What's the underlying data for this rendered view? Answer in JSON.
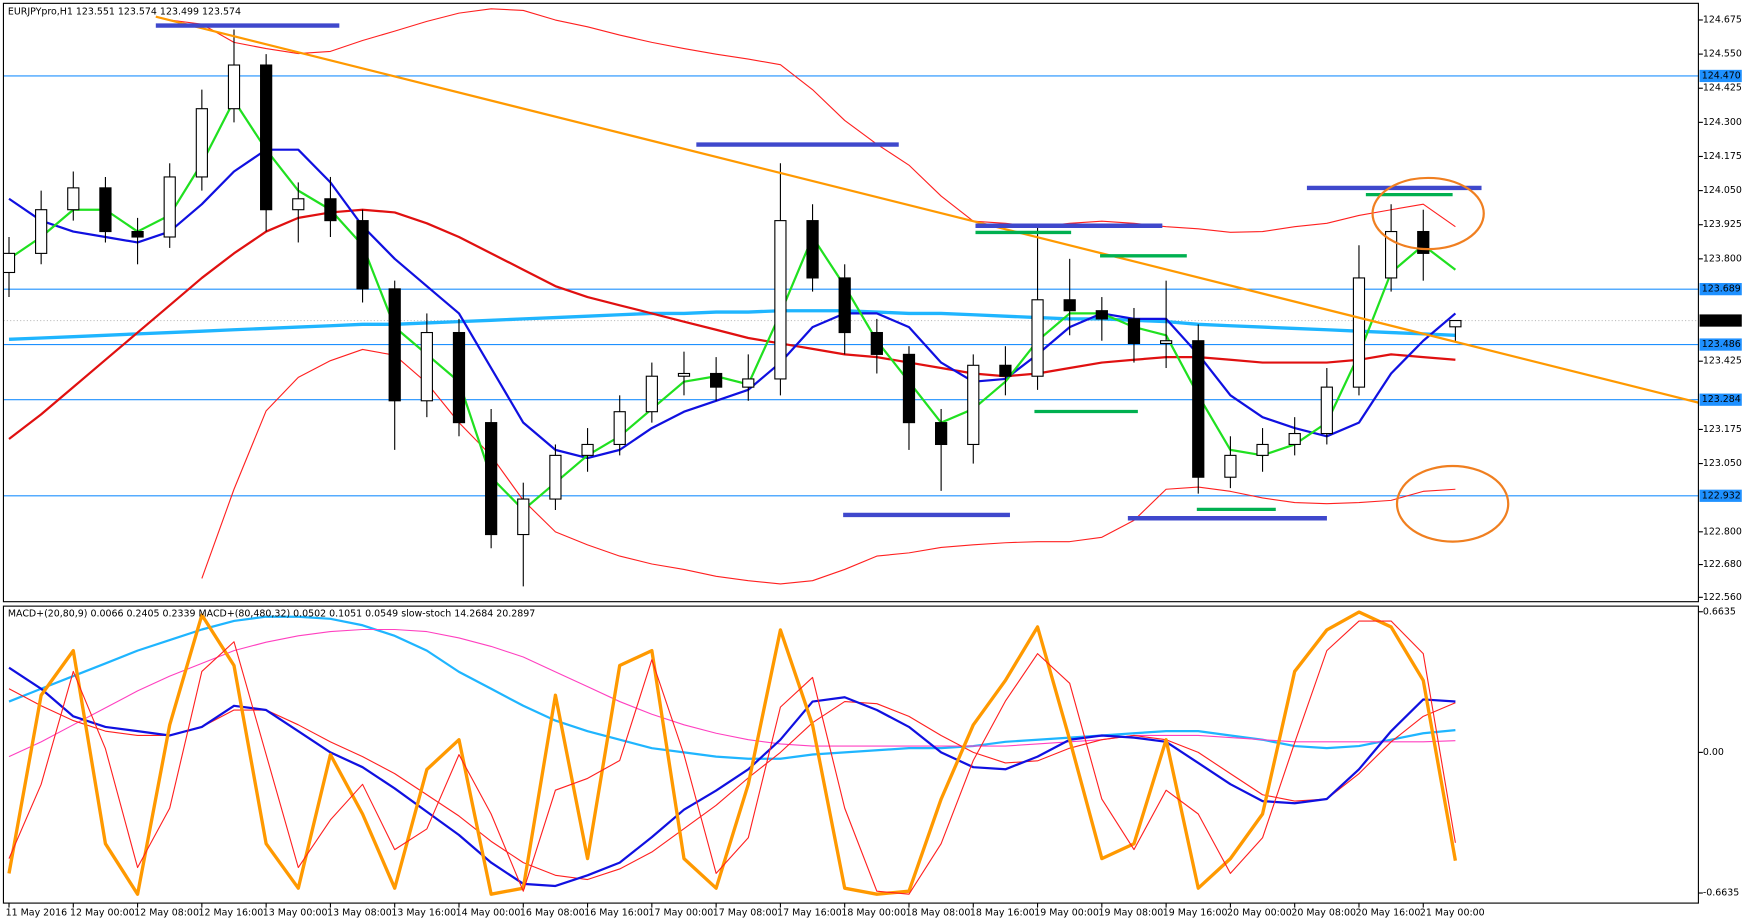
{
  "chart_data": [
    {
      "type": "candlestick",
      "title": "EURJPYpro,H1  123.551 123.574 123.499 123.574",
      "categories": [
        "11 May 2016",
        null,
        "12 May 00:00",
        null,
        "12 May 08:00",
        null,
        "12 May 16:00",
        null,
        "13 May 00:00",
        null,
        "13 May 08:00",
        null,
        "13 May 16:00",
        null,
        "14 May 00:00",
        null,
        "16 May 08:00",
        null,
        "16 May 16:00",
        null,
        "17 May 00:00",
        null,
        "17 May 08:00",
        null,
        "17 May 16:00",
        null,
        "18 May 00:00",
        null,
        "18 May 08:00",
        null,
        "18 May 16:00",
        null,
        "19 May 00:00",
        null,
        "19 May 08:00",
        null,
        "19 May 16:00",
        null,
        "20 May 00:00",
        null,
        "20 May 08:00",
        null,
        "20 May 16:00",
        null,
        "21 May 00:00",
        null
      ],
      "open": [
        123.75,
        123.82,
        123.98,
        124.06,
        123.9,
        123.88,
        124.1,
        124.35,
        124.51,
        123.98,
        124.02,
        123.94,
        123.69,
        123.28,
        123.53,
        123.2,
        122.79,
        122.92,
        123.08,
        123.12,
        123.24,
        123.37,
        123.38,
        123.33,
        123.36,
        123.94,
        123.73,
        123.53,
        123.45,
        123.2,
        123.12,
        123.41,
        123.37,
        123.65,
        123.61,
        123.58,
        123.49,
        123.5,
        123.0,
        123.08,
        123.12,
        123.16,
        123.33,
        123.73,
        123.9,
        123.551
      ],
      "high": [
        123.88,
        124.05,
        124.12,
        124.1,
        123.95,
        124.15,
        124.42,
        124.64,
        124.55,
        124.08,
        124.1,
        123.98,
        123.72,
        123.6,
        123.58,
        123.25,
        122.98,
        123.12,
        123.18,
        123.3,
        123.42,
        123.46,
        123.44,
        123.45,
        124.15,
        124.0,
        123.78,
        123.58,
        123.48,
        123.25,
        123.45,
        123.48,
        123.92,
        123.8,
        123.66,
        123.62,
        123.72,
        123.56,
        123.15,
        123.18,
        123.22,
        123.4,
        123.85,
        124.0,
        123.98,
        123.574
      ],
      "low": [
        123.66,
        123.78,
        123.94,
        123.86,
        123.78,
        123.84,
        124.05,
        124.3,
        123.9,
        123.86,
        123.88,
        123.64,
        123.1,
        123.22,
        123.15,
        122.74,
        122.6,
        122.88,
        123.02,
        123.08,
        123.2,
        123.3,
        123.28,
        123.28,
        123.3,
        123.68,
        123.45,
        123.38,
        123.1,
        122.95,
        123.05,
        123.3,
        123.32,
        123.52,
        123.5,
        123.42,
        123.4,
        122.94,
        122.96,
        123.02,
        123.08,
        123.12,
        123.3,
        123.68,
        123.72,
        123.499
      ],
      "close": [
        123.82,
        123.98,
        124.06,
        123.9,
        123.88,
        124.1,
        124.35,
        124.51,
        123.98,
        124.02,
        123.94,
        123.69,
        123.28,
        123.53,
        123.2,
        122.79,
        122.92,
        123.08,
        123.12,
        123.24,
        123.37,
        123.38,
        123.33,
        123.36,
        123.94,
        123.73,
        123.53,
        123.45,
        123.2,
        123.12,
        123.41,
        123.37,
        123.65,
        123.61,
        123.58,
        123.49,
        123.5,
        123.0,
        123.08,
        123.12,
        123.16,
        123.33,
        123.73,
        123.9,
        123.82,
        123.574
      ],
      "up_color": "#ffffff",
      "down_color": "#000000",
      "wick_color": "#000000",
      "series": [
        {
          "color": "#ff2020",
          "width": 1,
          "values": [
            null,
            null,
            null,
            null,
            null,
            124.675,
            124.66,
            124.593,
            124.57,
            124.552,
            124.56,
            124.6,
            124.634,
            124.67,
            124.7,
            124.716,
            124.71,
            124.675,
            124.65,
            124.62,
            124.593,
            124.57,
            124.55,
            124.532,
            124.511,
            124.42,
            124.307,
            124.22,
            124.143,
            124.03,
            123.938,
            123.93,
            123.918,
            123.93,
            123.938,
            123.93,
            123.918,
            123.91,
            123.897,
            123.9,
            123.918,
            123.93,
            123.959,
            123.98,
            124.0,
            123.918
          ]
        },
        {
          "color": "#ff2020",
          "width": 1,
          "values": [
            null,
            null,
            null,
            null,
            null,
            null,
            122.629,
            122.956,
            123.243,
            123.366,
            123.427,
            123.468,
            123.447,
            123.345,
            123.2,
            123.079,
            122.915,
            122.8,
            122.752,
            122.711,
            122.682,
            122.662,
            122.637,
            122.621,
            122.609,
            122.621,
            122.662,
            122.711,
            122.723,
            122.743,
            122.752,
            122.76,
            122.764,
            122.764,
            122.78,
            122.842,
            122.956,
            122.964,
            122.948,
            122.924,
            122.907,
            122.903,
            122.907,
            122.915,
            122.948,
            122.956
          ]
        },
        {
          "color": "#1fb5ff",
          "width": 3,
          "values": [
            123.505,
            123.51,
            123.515,
            123.52,
            123.525,
            123.53,
            123.535,
            123.54,
            123.545,
            123.55,
            123.555,
            123.56,
            123.56,
            123.565,
            123.57,
            123.575,
            123.58,
            123.585,
            123.59,
            123.595,
            123.6,
            123.6,
            123.605,
            123.605,
            123.61,
            123.61,
            123.61,
            123.605,
            123.6,
            123.6,
            123.595,
            123.59,
            123.585,
            123.58,
            123.58,
            123.575,
            123.57,
            123.56,
            123.555,
            123.55,
            123.545,
            123.54,
            123.535,
            123.53,
            123.525,
            123.52
          ]
        },
        {
          "color": "#e01010",
          "width": 2,
          "values": [
            123.14,
            123.23,
            123.33,
            123.43,
            123.53,
            123.63,
            123.73,
            123.82,
            123.9,
            123.95,
            123.97,
            123.98,
            123.97,
            123.93,
            123.88,
            123.82,
            123.76,
            123.7,
            123.66,
            123.63,
            123.6,
            123.57,
            123.54,
            123.51,
            123.49,
            123.47,
            123.45,
            123.44,
            123.42,
            123.4,
            123.38,
            123.37,
            123.38,
            123.4,
            123.42,
            123.43,
            123.44,
            123.44,
            123.43,
            123.42,
            123.42,
            123.42,
            123.43,
            123.45,
            123.44,
            123.43
          ]
        },
        {
          "color": "#1010e0",
          "width": 2,
          "values": [
            124.02,
            123.94,
            123.9,
            123.88,
            123.86,
            123.9,
            124.0,
            124.12,
            124.2,
            124.2,
            124.08,
            123.92,
            123.8,
            123.7,
            123.6,
            123.4,
            123.2,
            123.1,
            123.07,
            123.1,
            123.18,
            123.24,
            123.28,
            123.32,
            123.42,
            123.55,
            123.6,
            123.6,
            123.55,
            123.42,
            123.35,
            123.36,
            123.45,
            123.55,
            123.6,
            123.58,
            123.58,
            123.45,
            123.3,
            123.22,
            123.18,
            123.15,
            123.2,
            123.38,
            123.5,
            123.6
          ]
        },
        {
          "color": "#20e020",
          "width": 2,
          "values": [
            123.8,
            123.88,
            123.98,
            123.98,
            123.9,
            123.96,
            124.15,
            124.38,
            124.2,
            124.05,
            123.98,
            123.85,
            123.55,
            123.45,
            123.35,
            123.0,
            122.88,
            122.98,
            123.08,
            123.15,
            123.25,
            123.35,
            123.37,
            123.34,
            123.6,
            123.88,
            123.7,
            123.5,
            123.35,
            123.2,
            123.25,
            123.35,
            123.5,
            123.6,
            123.6,
            123.55,
            123.52,
            123.3,
            123.1,
            123.08,
            123.12,
            123.2,
            123.45,
            123.75,
            123.85,
            123.76
          ]
        }
      ],
      "levels": [
        {
          "value": 124.47,
          "label": "124.470"
        },
        123.689,
        123.486,
        123.284,
        122.932
      ],
      "level_color": "#1e90ff",
      "last_price": 123.574,
      "ylim": [
        122.544,
        124.736
      ],
      "yticks": [
        124.675,
        {
          "value": 124.55,
          "label": "124.550"
        },
        124.425,
        {
          "value": 124.3,
          "label": "124.300"
        },
        124.175,
        {
          "value": 124.05,
          "label": "124.050"
        },
        123.925,
        {
          "value": 123.8,
          "label": "123.800"
        },
        123.425,
        123.175,
        {
          "value": 123.05,
          "label": "123.050"
        },
        {
          "value": 122.8,
          "label": "122.800"
        },
        {
          "value": 122.68,
          "label": "122.680"
        },
        {
          "value": 122.56,
          "label": "122.560"
        }
      ]
    },
    {
      "type": "line",
      "title": "MACD+(20,80,9) 0.0066 0.2405 0.2339  MACD+(80,480,32) 0.0502 0.1051 0.0549  slow-stoch 14.2684 20.2897",
      "series": [
        {
          "color": "#1fb5ff",
          "width": 2,
          "values": [
            0.24,
            0.3,
            0.36,
            0.42,
            0.48,
            0.53,
            0.58,
            0.62,
            0.64,
            0.64,
            0.63,
            0.6,
            0.55,
            0.48,
            0.38,
            0.3,
            0.22,
            0.15,
            0.1,
            0.06,
            0.02,
            0.0,
            -0.02,
            -0.03,
            -0.03,
            -0.01,
            0.0,
            0.01,
            0.02,
            0.02,
            0.03,
            0.05,
            0.06,
            0.07,
            0.08,
            0.09,
            0.1,
            0.1,
            0.08,
            0.06,
            0.03,
            0.02,
            0.03,
            0.06,
            0.09,
            0.1051
          ]
        },
        {
          "color": "#ff40c0",
          "width": 1,
          "values": [
            -0.02,
            0.05,
            0.13,
            0.21,
            0.29,
            0.36,
            0.42,
            0.48,
            0.52,
            0.55,
            0.57,
            0.58,
            0.58,
            0.57,
            0.54,
            0.5,
            0.45,
            0.38,
            0.31,
            0.24,
            0.18,
            0.13,
            0.09,
            0.06,
            0.04,
            0.03,
            0.03,
            0.03,
            0.03,
            0.03,
            0.03,
            0.03,
            0.04,
            0.05,
            0.06,
            0.08,
            0.08,
            0.08,
            0.07,
            0.06,
            0.05,
            0.05,
            0.05,
            0.05,
            0.05,
            0.0549
          ]
        },
        {
          "color": "#ff2020",
          "width": 1,
          "values": [
            0.3,
            0.22,
            0.15,
            0.1,
            0.08,
            0.08,
            0.12,
            0.2,
            0.2,
            0.13,
            0.05,
            -0.02,
            -0.1,
            -0.2,
            -0.3,
            -0.42,
            -0.52,
            -0.58,
            -0.6,
            -0.55,
            -0.47,
            -0.36,
            -0.25,
            -0.12,
            0.0,
            0.14,
            0.24,
            0.23,
            0.17,
            0.08,
            0.0,
            -0.05,
            -0.04,
            0.02,
            0.06,
            0.08,
            0.06,
            0.0,
            -0.1,
            -0.2,
            -0.23,
            -0.22,
            -0.1,
            0.05,
            0.17,
            0.2339
          ]
        },
        {
          "color": "#1010e0",
          "width": 2,
          "values": [
            0.4,
            0.3,
            0.17,
            0.12,
            0.1,
            0.08,
            0.12,
            0.22,
            0.2,
            0.1,
            0.0,
            -0.07,
            -0.17,
            -0.28,
            -0.39,
            -0.52,
            -0.62,
            -0.63,
            -0.58,
            -0.52,
            -0.4,
            -0.27,
            -0.18,
            -0.08,
            0.06,
            0.24,
            0.26,
            0.2,
            0.12,
            0.0,
            -0.07,
            -0.08,
            -0.02,
            0.06,
            0.08,
            0.07,
            0.05,
            -0.05,
            -0.15,
            -0.23,
            -0.24,
            -0.22,
            -0.08,
            0.1,
            0.25,
            0.2405
          ]
        },
        {
          "color": "#ff9900",
          "width": 3,
          "axis": "y2",
          "values": [
            10,
            70,
            85,
            20,
            3,
            60,
            97,
            80,
            20,
            5,
            50,
            30,
            5,
            45,
            55,
            3,
            5,
            70,
            15,
            80,
            85,
            15,
            5,
            40,
            92,
            60,
            5,
            3,
            4,
            35,
            60,
            75,
            93,
            55,
            15,
            20,
            55,
            5,
            15,
            30,
            78,
            92,
            98,
            93,
            75,
            14.2684
          ]
        },
        {
          "color": "#ff2020",
          "width": 1,
          "axis": "y2",
          "values": [
            15,
            40,
            78,
            52,
            12,
            32,
            78,
            88,
            50,
            12,
            28,
            40,
            18,
            25,
            50,
            30,
            4,
            38,
            42,
            48,
            82,
            50,
            10,
            22,
            66,
            76,
            32,
            4,
            3,
            20,
            48,
            68,
            84,
            74,
            35,
            18,
            38,
            30,
            10,
            22,
            54,
            85,
            95,
            95,
            84,
            20.2897
          ]
        }
      ],
      "ylim": [
        -0.711,
        0.69
      ],
      "yticks": [
        0.6635,
        {
          "value": 0,
          "label": "0.00"
        },
        -0.6635
      ],
      "y2lim": [
        0,
        100
      ]
    }
  ]
}
